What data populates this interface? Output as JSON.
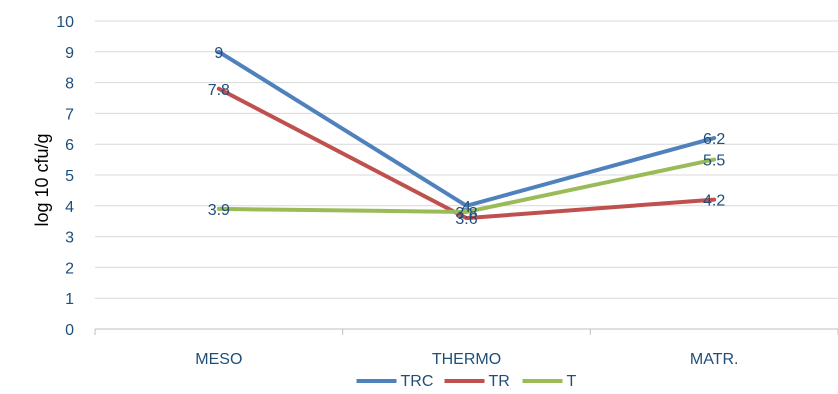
{
  "chart_data": {
    "type": "line",
    "categories": [
      "MESO",
      "THERMO",
      "MATR."
    ],
    "series": [
      {
        "name": "TRC",
        "values": [
          9,
          4,
          6.2
        ],
        "color": "#4f81bd"
      },
      {
        "name": "TR",
        "values": [
          7.8,
          3.6,
          4.2
        ],
        "color": "#c0504d"
      },
      {
        "name": "T",
        "values": [
          3.9,
          3.8,
          5.5
        ],
        "color": "#9bbb59"
      }
    ],
    "ylabel": "log 10 cfu/g",
    "ylim": [
      0,
      10
    ],
    "yticks": [
      0,
      1,
      2,
      3,
      4,
      5,
      6,
      7,
      8,
      9,
      10
    ],
    "grid": true,
    "legend": "bottom",
    "data_labels": true
  }
}
